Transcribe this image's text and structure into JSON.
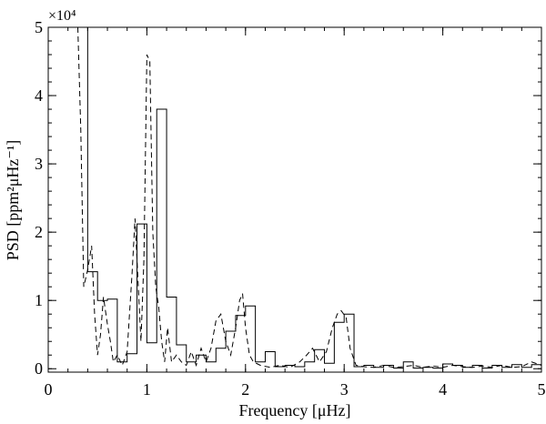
{
  "chart_data": {
    "type": "line",
    "title": "",
    "xlabel": "Frequency [μHz]",
    "ylabel": "PSD [ppm²μHz⁻¹]",
    "y_multiplier_label": "×10⁴",
    "xlim": [
      0,
      5
    ],
    "ylim": [
      -0.05,
      5
    ],
    "x_ticks": [
      "0",
      "1",
      "2",
      "3",
      "4",
      "5"
    ],
    "y_ticks": [
      "0",
      "1",
      "2",
      "3",
      "4",
      "5"
    ],
    "grid": false,
    "legend": "none",
    "series": [
      {
        "style": "step",
        "x": [
          0.3,
          0.4,
          0.5,
          0.6,
          0.7,
          0.8,
          0.9,
          1.0,
          1.1,
          1.2,
          1.3,
          1.4,
          1.5,
          1.6,
          1.7,
          1.8,
          1.9,
          2.0,
          2.1,
          2.2,
          2.3,
          2.4,
          2.5,
          2.6,
          2.7,
          2.8,
          2.9,
          3.0,
          3.1,
          3.2,
          3.3,
          3.4,
          3.5,
          3.6,
          3.7,
          3.8,
          3.9,
          4.0,
          4.1,
          4.2,
          4.3,
          4.4,
          4.5,
          4.6,
          4.7,
          4.8,
          4.9,
          5.0
        ],
        "y": [
          5.0,
          1.42,
          1.0,
          1.02,
          0.1,
          0.22,
          2.12,
          0.38,
          3.8,
          1.05,
          0.35,
          0.1,
          0.2,
          0.1,
          0.3,
          0.55,
          0.78,
          0.92,
          0.1,
          0.25,
          0.03,
          0.05,
          0.03,
          0.1,
          0.28,
          0.08,
          0.68,
          0.8,
          0.03,
          0.05,
          0.02,
          0.05,
          0.01,
          0.1,
          0.01,
          0.02,
          0.01,
          0.07,
          0.05,
          0.02,
          0.05,
          0.01,
          0.05,
          0.02,
          0.06,
          0.02,
          0.06,
          0.02
        ]
      },
      {
        "style": "dashed",
        "x": [
          0.3,
          0.33,
          0.36,
          0.4,
          0.44,
          0.47,
          0.5,
          0.53,
          0.56,
          0.6,
          0.63,
          0.66,
          0.7,
          0.75,
          0.8,
          0.85,
          0.88,
          0.91,
          0.94,
          0.97,
          1.0,
          1.03,
          1.06,
          1.09,
          1.12,
          1.15,
          1.18,
          1.21,
          1.25,
          1.3,
          1.35,
          1.4,
          1.45,
          1.5,
          1.55,
          1.6,
          1.65,
          1.7,
          1.75,
          1.8,
          1.85,
          1.9,
          1.94,
          1.97,
          2.0,
          2.04,
          2.08,
          2.15,
          2.25,
          2.35,
          2.45,
          2.55,
          2.62,
          2.68,
          2.75,
          2.82,
          2.88,
          2.93,
          2.97,
          3.02,
          3.06,
          3.12,
          3.2,
          3.3,
          3.4,
          3.5,
          3.6,
          3.7,
          3.8,
          3.9,
          4.0,
          4.1,
          4.2,
          4.3,
          4.4,
          4.5,
          4.6,
          4.7,
          4.8,
          4.9,
          5.0
        ],
        "y": [
          5.0,
          3.5,
          1.2,
          1.45,
          1.8,
          0.8,
          0.2,
          0.5,
          1.05,
          0.65,
          0.4,
          0.1,
          0.2,
          0.05,
          0.25,
          1.4,
          2.2,
          1.3,
          0.4,
          1.6,
          4.6,
          4.5,
          2.0,
          1.2,
          0.9,
          0.4,
          0.1,
          0.6,
          0.1,
          0.2,
          0.1,
          0.05,
          0.25,
          0.05,
          0.3,
          0.1,
          0.3,
          0.7,
          0.8,
          0.4,
          0.2,
          0.6,
          1.0,
          1.1,
          0.6,
          0.2,
          0.1,
          0.05,
          0.02,
          0.05,
          0.02,
          0.1,
          0.2,
          0.3,
          0.1,
          0.25,
          0.6,
          0.8,
          0.85,
          0.75,
          0.3,
          0.05,
          0.03,
          0.02,
          0.05,
          0.02,
          0.03,
          0.05,
          0.02,
          0.04,
          0.02,
          0.05,
          0.03,
          0.02,
          0.04,
          0.02,
          0.05,
          0.02,
          0.03,
          0.1,
          0.05
        ]
      }
    ]
  }
}
